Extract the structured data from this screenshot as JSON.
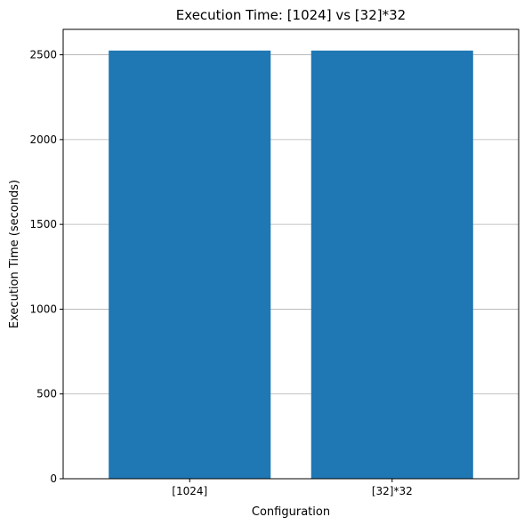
{
  "chart_data": {
    "type": "bar",
    "title": "Execution Time: [1024] vs [32]*32",
    "xlabel": "Configuration",
    "ylabel": "Execution Time (seconds)",
    "categories": [
      "[1024]",
      "[32]*32"
    ],
    "values": [
      2525,
      2525
    ],
    "ylim": [
      0,
      2650
    ],
    "yticks": [
      0,
      500,
      1000,
      1500,
      2000,
      2500
    ],
    "grid": "y-axis",
    "bar_color": "#1f77b4"
  }
}
